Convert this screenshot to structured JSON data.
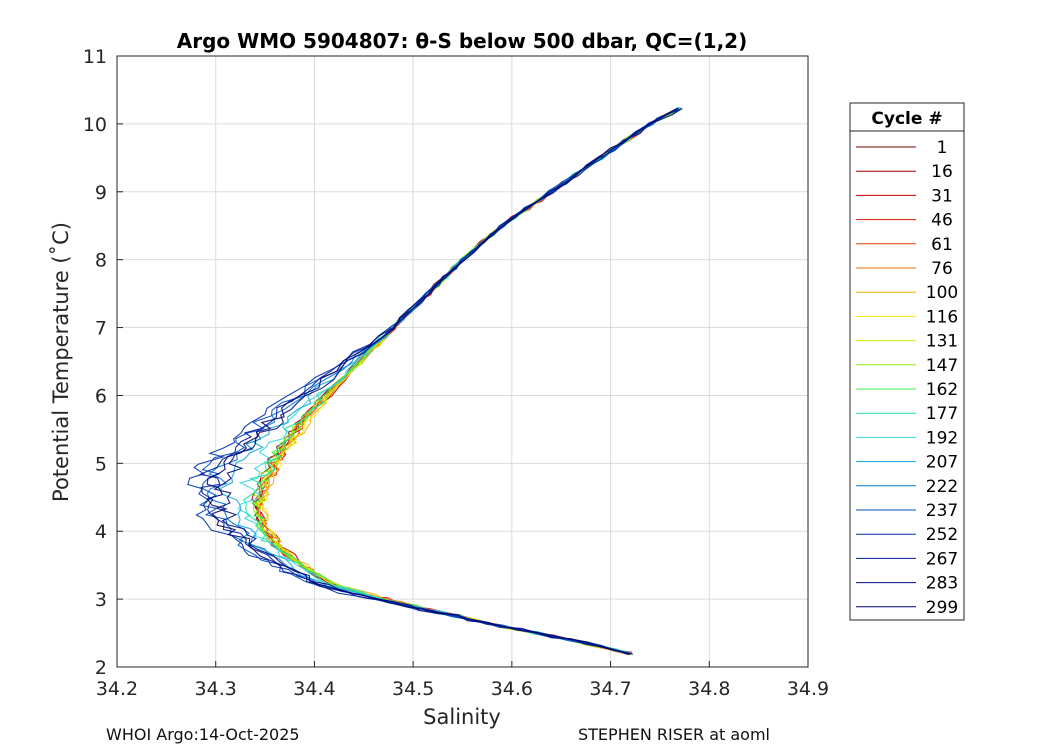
{
  "chart_data": {
    "type": "line",
    "title": "Argo WMO 5904807: θ-S below 500 dbar,  QC=(1,2)",
    "xlabel": "Salinity",
    "ylabel": "Potential Temperature (˚C)",
    "xlim": [
      34.2,
      34.9
    ],
    "ylim": [
      2,
      11
    ],
    "xticks": [
      "34.2",
      "34.3",
      "34.4",
      "34.5",
      "34.6",
      "34.7",
      "34.8",
      "34.9"
    ],
    "yticks": [
      "2",
      "3",
      "4",
      "5",
      "6",
      "7",
      "8",
      "9",
      "10",
      "11"
    ],
    "grid": true,
    "legend_title": "Cycle #",
    "legend_position": "right-outside",
    "series": [
      {
        "name": "1",
        "color": "#7f0000",
        "offset": 0.0
      },
      {
        "name": "16",
        "color": "#a00000",
        "offset": 0.0
      },
      {
        "name": "31",
        "color": "#c80000",
        "offset": 0.008
      },
      {
        "name": "46",
        "color": "#e01a00",
        "offset": 0.006
      },
      {
        "name": "61",
        "color": "#f04000",
        "offset": 0.004
      },
      {
        "name": "76",
        "color": "#e07000",
        "offset": 0.004
      },
      {
        "name": "100",
        "color": "#f0b000",
        "offset": 0.01
      },
      {
        "name": "116",
        "color": "#ffe600",
        "offset": 0.008
      },
      {
        "name": "131",
        "color": "#c8f000",
        "offset": 0.006
      },
      {
        "name": "147",
        "color": "#8cf000",
        "offset": 0.002
      },
      {
        "name": "162",
        "color": "#40f050",
        "offset": 0.0
      },
      {
        "name": "177",
        "color": "#20e0a0",
        "offset": -0.004
      },
      {
        "name": "192",
        "color": "#30d8e0",
        "offset": -0.01
      },
      {
        "name": "207",
        "color": "#10a8e0",
        "offset": -0.03
      },
      {
        "name": "222",
        "color": "#0078d0",
        "offset": -0.045
      },
      {
        "name": "237",
        "color": "#0050c8",
        "offset": -0.06
      },
      {
        "name": "252",
        "color": "#0030b0",
        "offset": -0.07
      },
      {
        "name": "267",
        "color": "#0018a0",
        "offset": -0.055
      },
      {
        "name": "283",
        "color": "#000c80",
        "offset": -0.04
      },
      {
        "name": "299",
        "color": "#000070",
        "offset": -0.05
      }
    ],
    "base_profile": {
      "theta": [
        2.2,
        2.4,
        2.6,
        2.8,
        3.0,
        3.2,
        3.5,
        3.8,
        4.1,
        4.4,
        4.7,
        5.0,
        5.3,
        5.6,
        6.0,
        6.5,
        7.0,
        7.5,
        8.0,
        8.5,
        9.0,
        9.5,
        10.0,
        10.3
      ],
      "salinity": [
        34.72,
        34.66,
        34.59,
        34.53,
        34.47,
        34.42,
        34.385,
        34.36,
        34.345,
        34.34,
        34.345,
        34.355,
        34.37,
        34.385,
        34.41,
        34.445,
        34.48,
        34.515,
        34.55,
        34.59,
        34.64,
        34.69,
        34.74,
        34.78
      ]
    }
  },
  "footer": {
    "left": "WHOI Argo:14-Oct-2025",
    "right": "STEPHEN RISER at aoml"
  }
}
